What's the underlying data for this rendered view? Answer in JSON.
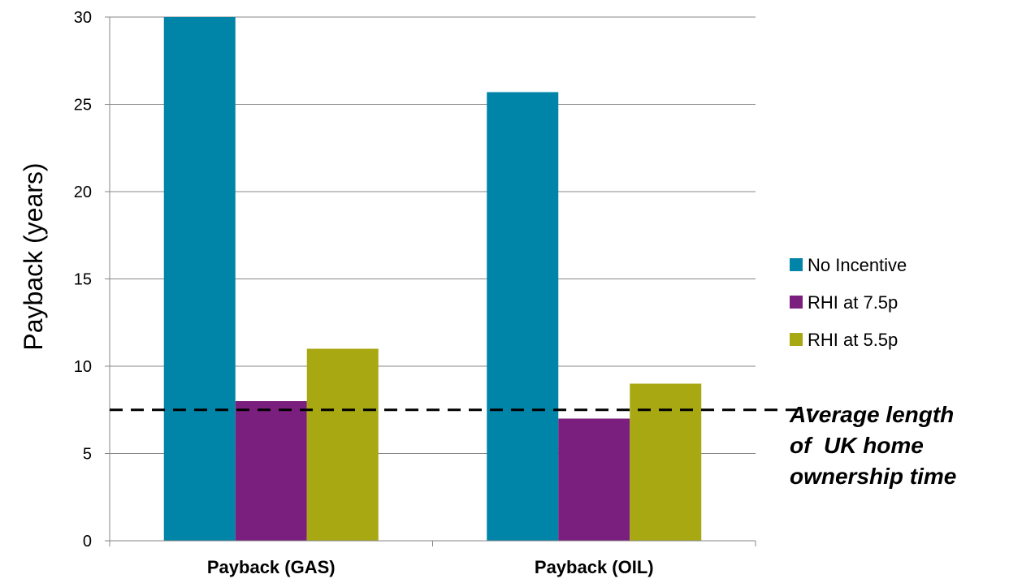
{
  "chart_data": {
    "type": "bar",
    "title": "",
    "ylabel": "Payback (years)",
    "xlabel": "",
    "ylim": [
      0,
      30
    ],
    "yticks": [
      "0",
      "5",
      "10",
      "15",
      "20",
      "25",
      "30"
    ],
    "categories": [
      "Payback (GAS)",
      "Payback (OIL)"
    ],
    "series": [
      {
        "name": "No Incentive",
        "values": [
          30,
          25.7
        ],
        "color": "#0085a8"
      },
      {
        "name": "RHI at 7.5p",
        "values": [
          8,
          7
        ],
        "color": "#7b1f7e"
      },
      {
        "name": "RHI at 5.5p",
        "values": [
          11,
          9
        ],
        "color": "#a8a812"
      }
    ],
    "grid": true,
    "legend_position": "right",
    "reference_line": {
      "value": 7.5,
      "style": "dashed",
      "label_lines": [
        "Average length",
        "of  UK home",
        "ownership time"
      ]
    }
  }
}
